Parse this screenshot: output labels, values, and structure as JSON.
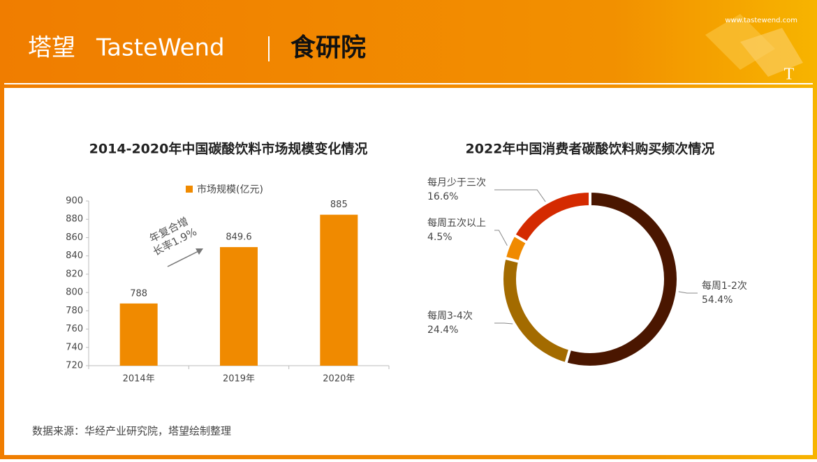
{
  "header": {
    "brand_cn": "塔望",
    "brand_en": "TasteWend",
    "institute": "食研院",
    "url": "www.tastewend.com"
  },
  "chart_data": [
    {
      "type": "bar",
      "title": "2014-2020年中国碳酸饮料市场规模变化情况",
      "categories": [
        "2014年",
        "2019年",
        "2020年"
      ],
      "series": [
        {
          "name": "市场规模(亿元)",
          "color": "#f08a00",
          "values": [
            788,
            849.6,
            885
          ]
        }
      ],
      "ylim": [
        720,
        900
      ],
      "yticks": [
        720,
        740,
        760,
        780,
        800,
        820,
        840,
        860,
        880,
        900
      ],
      "grid": false,
      "legend": "top",
      "annotation": [
        "年复合增",
        "长率1.9%"
      ]
    },
    {
      "type": "donut",
      "title": "2022年中国消费者碳酸饮料购买频次情况",
      "categories": [
        "每周1-2次",
        "每周3-4次",
        "每周五次以上",
        "每月少于三次"
      ],
      "values": [
        54.4,
        24.4,
        4.5,
        16.6
      ],
      "value_labels": [
        "54.4%",
        "24.4%",
        "4.5%",
        "16.6%"
      ],
      "colors": [
        "#4a1600",
        "#a36b00",
        "#f08a00",
        "#d42a00"
      ]
    }
  ],
  "source": "数据来源：华经产业研究院，塔望绘制整理"
}
